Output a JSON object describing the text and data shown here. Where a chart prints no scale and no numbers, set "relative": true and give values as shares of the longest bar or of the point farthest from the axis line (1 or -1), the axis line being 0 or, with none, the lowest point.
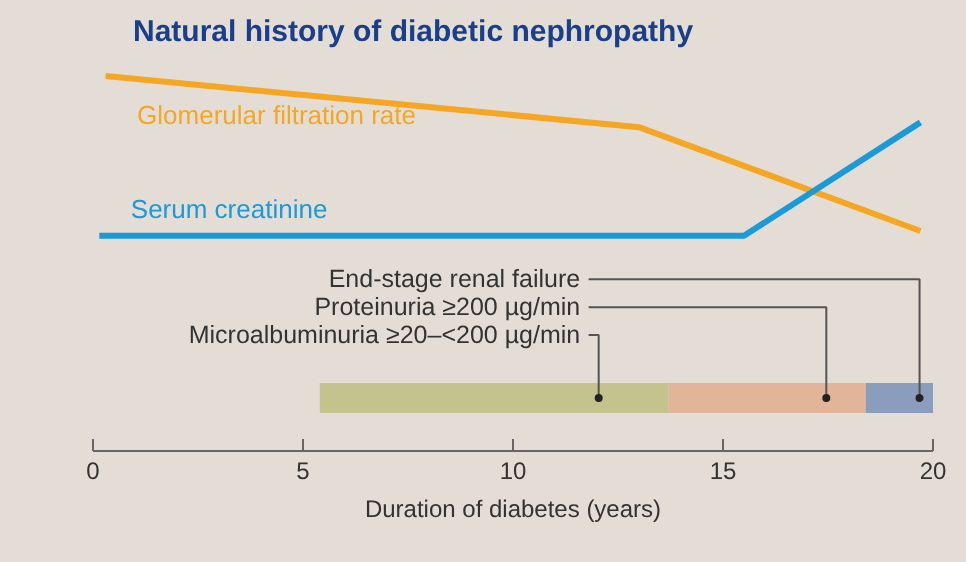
{
  "chart_data": [
    {
      "type": "line",
      "title": "Natural history of diabetic nephropathy",
      "relative": true,
      "xlim": [
        0,
        20
      ],
      "tick_labels": false,
      "grid": false,
      "series": [
        {
          "name": "Glomerular filtration rate",
          "color": "#f5a623",
          "x": [
            0.3,
            13.0,
            19.7
          ],
          "values": [
            1,
            0.68,
            0.03
          ]
        },
        {
          "name": "Serum creatinine",
          "color": "#1a9ad6",
          "x": [
            0.15,
            15.5,
            19.7
          ],
          "values": [
            0,
            0,
            0.71
          ]
        }
      ]
    },
    {
      "type": "bar",
      "orientation": "horizontal",
      "xlabel": "Duration of diabetes (years)",
      "xlim": [
        0,
        20
      ],
      "xticks": [
        0,
        5,
        10,
        15,
        20
      ],
      "grid": false,
      "categories": [
        null
      ],
      "series": [
        {
          "name": "Microalbuminuria ≥20–<200 µg/min",
          "color": "#c4c38e",
          "base": [
            5.4
          ],
          "values": [
            8.3
          ]
        },
        {
          "name": "Proteinuria ≥200 µg/min",
          "color": "#e3b598",
          "base": [
            13.7
          ],
          "values": [
            4.7
          ]
        },
        {
          "name": "End-stage renal failure",
          "color": "#8b9dbd",
          "base": [
            18.4
          ],
          "values": [
            1.6
          ]
        }
      ]
    }
  ]
}
